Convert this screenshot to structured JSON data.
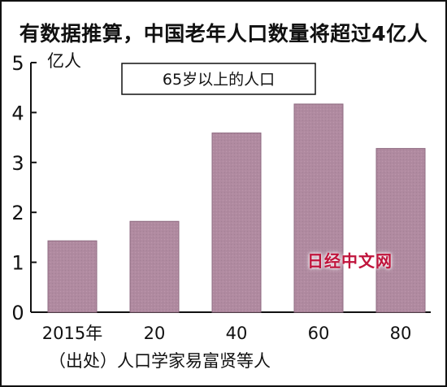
{
  "title": "有数据推算，中国老年人口数量将超过4亿人",
  "source": "（出处）人口学家易富贤等人",
  "watermark": "日经中文网",
  "chart_data": {
    "type": "bar",
    "unit": "亿人",
    "legend": "65岁以上的人口",
    "categories": [
      "2015年",
      "20",
      "40",
      "60",
      "80"
    ],
    "values": [
      1.43,
      1.82,
      3.59,
      4.17,
      3.28
    ],
    "ylim": [
      0,
      5
    ],
    "yticks": [
      0,
      1,
      2,
      3,
      4,
      5
    ],
    "bar_color": "#b08aa0",
    "grid": false
  }
}
